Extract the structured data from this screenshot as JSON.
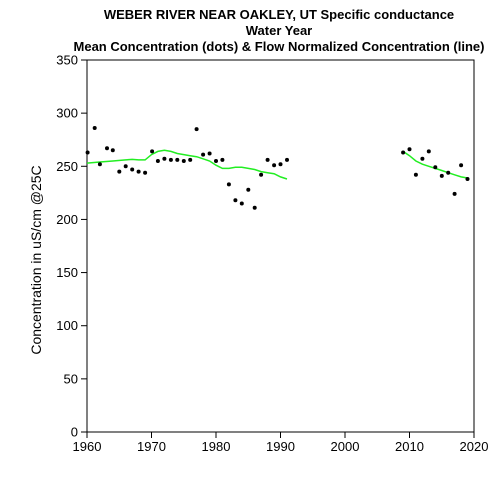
{
  "chart_data": {
    "type": "scatter",
    "title_lines": [
      "WEBER RIVER NEAR OAKLEY, UT   Specific conductance",
      "Water Year",
      "Mean Concentration (dots) & Flow Normalized Concentration (line)"
    ],
    "xlabel": "",
    "ylabel": "Concentration in uS/cm @25C",
    "xlim": [
      1960,
      2020
    ],
    "ylim": [
      0,
      350
    ],
    "x_ticks": [
      1960,
      1970,
      1980,
      1990,
      2000,
      2010,
      2020
    ],
    "y_ticks": [
      0,
      50,
      100,
      150,
      200,
      250,
      300,
      350
    ],
    "grid": false,
    "legend": "none",
    "series": [
      {
        "kind": "points",
        "color": "#000000",
        "points": [
          [
            1960.1,
            263
          ],
          [
            1961.2,
            286
          ],
          [
            1962.0,
            252
          ],
          [
            1963.1,
            267
          ],
          [
            1964.0,
            265
          ],
          [
            1965.0,
            245
          ],
          [
            1966.0,
            250
          ],
          [
            1967.0,
            247
          ],
          [
            1968.0,
            245
          ],
          [
            1969.0,
            244
          ],
          [
            1970.1,
            264
          ],
          [
            1971.0,
            255
          ],
          [
            1972.0,
            257
          ],
          [
            1973.0,
            256
          ],
          [
            1974.0,
            256
          ],
          [
            1975.0,
            255
          ],
          [
            1976.0,
            256
          ],
          [
            1977.0,
            285
          ],
          [
            1978.0,
            261
          ],
          [
            1979.0,
            262
          ],
          [
            1980.0,
            255
          ],
          [
            1981.0,
            256
          ],
          [
            1982.0,
            233
          ],
          [
            1983.0,
            218
          ],
          [
            1984.0,
            215
          ],
          [
            1985.0,
            228
          ],
          [
            1986.0,
            211
          ],
          [
            1987.0,
            242
          ],
          [
            1988.0,
            256
          ],
          [
            1989.0,
            251
          ],
          [
            1990.0,
            252
          ],
          [
            1991.0,
            256
          ],
          [
            2009.0,
            263
          ],
          [
            2010.0,
            266
          ],
          [
            2011.0,
            242
          ],
          [
            2012.0,
            257
          ],
          [
            2013.0,
            264
          ],
          [
            2014.0,
            249
          ],
          [
            2015.0,
            241
          ],
          [
            2016.0,
            244
          ],
          [
            2017.0,
            224
          ],
          [
            2018.0,
            251
          ],
          [
            2019.0,
            238
          ]
        ]
      },
      {
        "kind": "line",
        "color": "#22ee22",
        "segments": [
          [
            [
              1960,
              253
            ],
            [
              1962,
              254
            ],
            [
              1964,
              255
            ],
            [
              1966,
              256
            ],
            [
              1967,
              256.5
            ],
            [
              1968,
              256
            ],
            [
              1969,
              256
            ],
            [
              1970,
              261
            ],
            [
              1971,
              264
            ],
            [
              1972,
              265
            ],
            [
              1973,
              264
            ],
            [
              1974,
              262
            ],
            [
              1975,
              261
            ],
            [
              1976,
              260
            ],
            [
              1977,
              259
            ],
            [
              1978,
              257
            ],
            [
              1979,
              255
            ],
            [
              1980,
              251
            ],
            [
              1981,
              248
            ],
            [
              1982,
              248
            ],
            [
              1983,
              249
            ],
            [
              1984,
              249
            ],
            [
              1985,
              248
            ],
            [
              1986,
              247
            ],
            [
              1987,
              245
            ],
            [
              1988,
              244
            ],
            [
              1989,
              243
            ],
            [
              1990,
              240
            ],
            [
              1991,
              238
            ]
          ],
          [
            [
              2009,
              264
            ],
            [
              2010,
              260
            ],
            [
              2011,
              255
            ],
            [
              2012,
              252
            ],
            [
              2013,
              250
            ],
            [
              2014,
              248
            ],
            [
              2015,
              246
            ],
            [
              2016,
              244
            ],
            [
              2017,
              242
            ],
            [
              2018,
              240
            ],
            [
              2019,
              239
            ]
          ]
        ]
      }
    ]
  }
}
